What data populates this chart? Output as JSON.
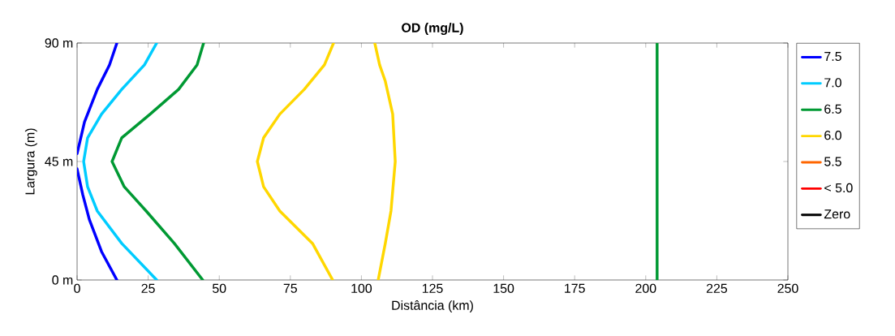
{
  "chart_data": {
    "type": "line",
    "title": "OD (mg/L)",
    "xlabel": "Distância (km)",
    "ylabel": "Largura (m)",
    "xlim": [
      0,
      250
    ],
    "xticks": [
      0,
      25,
      50,
      75,
      100,
      125,
      150,
      175,
      200,
      225,
      250
    ],
    "ylim": [
      0,
      90
    ],
    "yticks": [
      {
        "value": 0,
        "label": "0 m"
      },
      {
        "value": 45,
        "label": "45 m"
      },
      {
        "value": 90,
        "label": "90 m"
      }
    ],
    "legend": "right",
    "grid": false,
    "marker": "none",
    "line_style": "solid",
    "series": [
      {
        "name": "7.5",
        "color": "#0000ff",
        "x": [
          14,
          8.6,
          4.3,
          2,
          0,
          null,
          0,
          2.6,
          7.1,
          11.4,
          14
        ],
        "values": [
          0,
          10.8,
          23,
          32.4,
          42.2,
          null,
          48,
          60,
          72.4,
          81.7,
          90
        ]
      },
      {
        "name": "7.0",
        "color": "#00ccff",
        "x": [
          28,
          15.7,
          7.1,
          3.7,
          2.3,
          3.7,
          8.6,
          15.7,
          23.7,
          28
        ],
        "values": [
          0,
          13.9,
          26.2,
          35.4,
          45,
          54,
          63,
          72.4,
          81.7,
          90
        ]
      },
      {
        "name": "6.5",
        "color": "#009933",
        "x": [
          44.2,
          34.2,
          24.3,
          16.6,
          12.3,
          15.7,
          25.7,
          35.7,
          42.2,
          44.5,
          null,
          204,
          204
        ],
        "values": [
          0,
          13.9,
          26.2,
          35.4,
          45,
          54,
          63,
          72.4,
          81.7,
          90,
          null,
          0,
          90
        ]
      },
      {
        "name": "6.0",
        "color": "#ffd700",
        "x": [
          89.9,
          82.8,
          71.3,
          65.6,
          63.4,
          65.6,
          71.3,
          79.9,
          87,
          90.2,
          null,
          105.9,
          108.4,
          110.4,
          111.9,
          111,
          108.4,
          106.4,
          104.7
        ],
        "values": [
          0,
          13.9,
          26.2,
          35.4,
          45,
          54,
          63,
          72.4,
          81.7,
          90,
          null,
          0,
          13.9,
          26.2,
          45,
          63,
          75.5,
          81.7,
          90
        ]
      },
      {
        "name": "5.5",
        "color": "#ff6600"
      },
      {
        "name": "< 5.0",
        "color": "#ff0000"
      },
      {
        "name": "Zero",
        "color": "#000000"
      }
    ]
  }
}
